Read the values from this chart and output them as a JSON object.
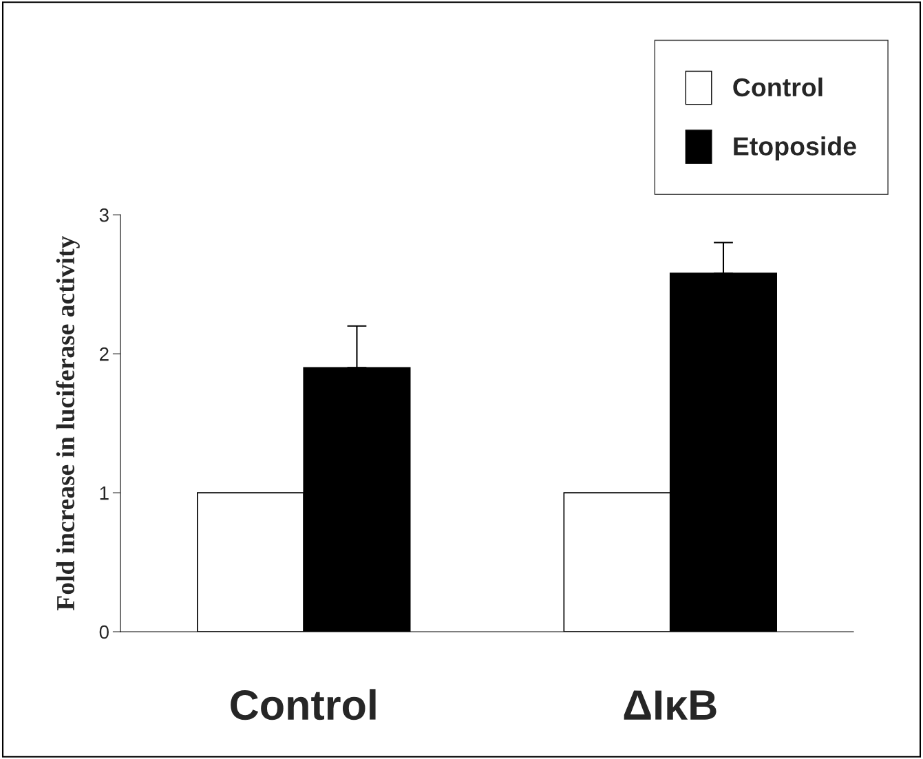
{
  "chart_data": {
    "type": "bar",
    "ylabel": "Fold increase in luciferase activity",
    "categories": [
      "Control",
      "ΔIκB"
    ],
    "series": [
      {
        "name": "Control",
        "color": "#ffffff",
        "values": [
          1.0,
          1.0
        ]
      },
      {
        "name": "Etoposide",
        "color": "#000000",
        "values": [
          1.9,
          2.58
        ],
        "errors": [
          [
            1.9,
            2.2
          ],
          [
            2.58,
            2.8
          ]
        ]
      }
    ],
    "ylim": [
      0,
      3
    ],
    "yticks": [
      0,
      1,
      2,
      3
    ],
    "grid": false,
    "legend": "top right"
  }
}
